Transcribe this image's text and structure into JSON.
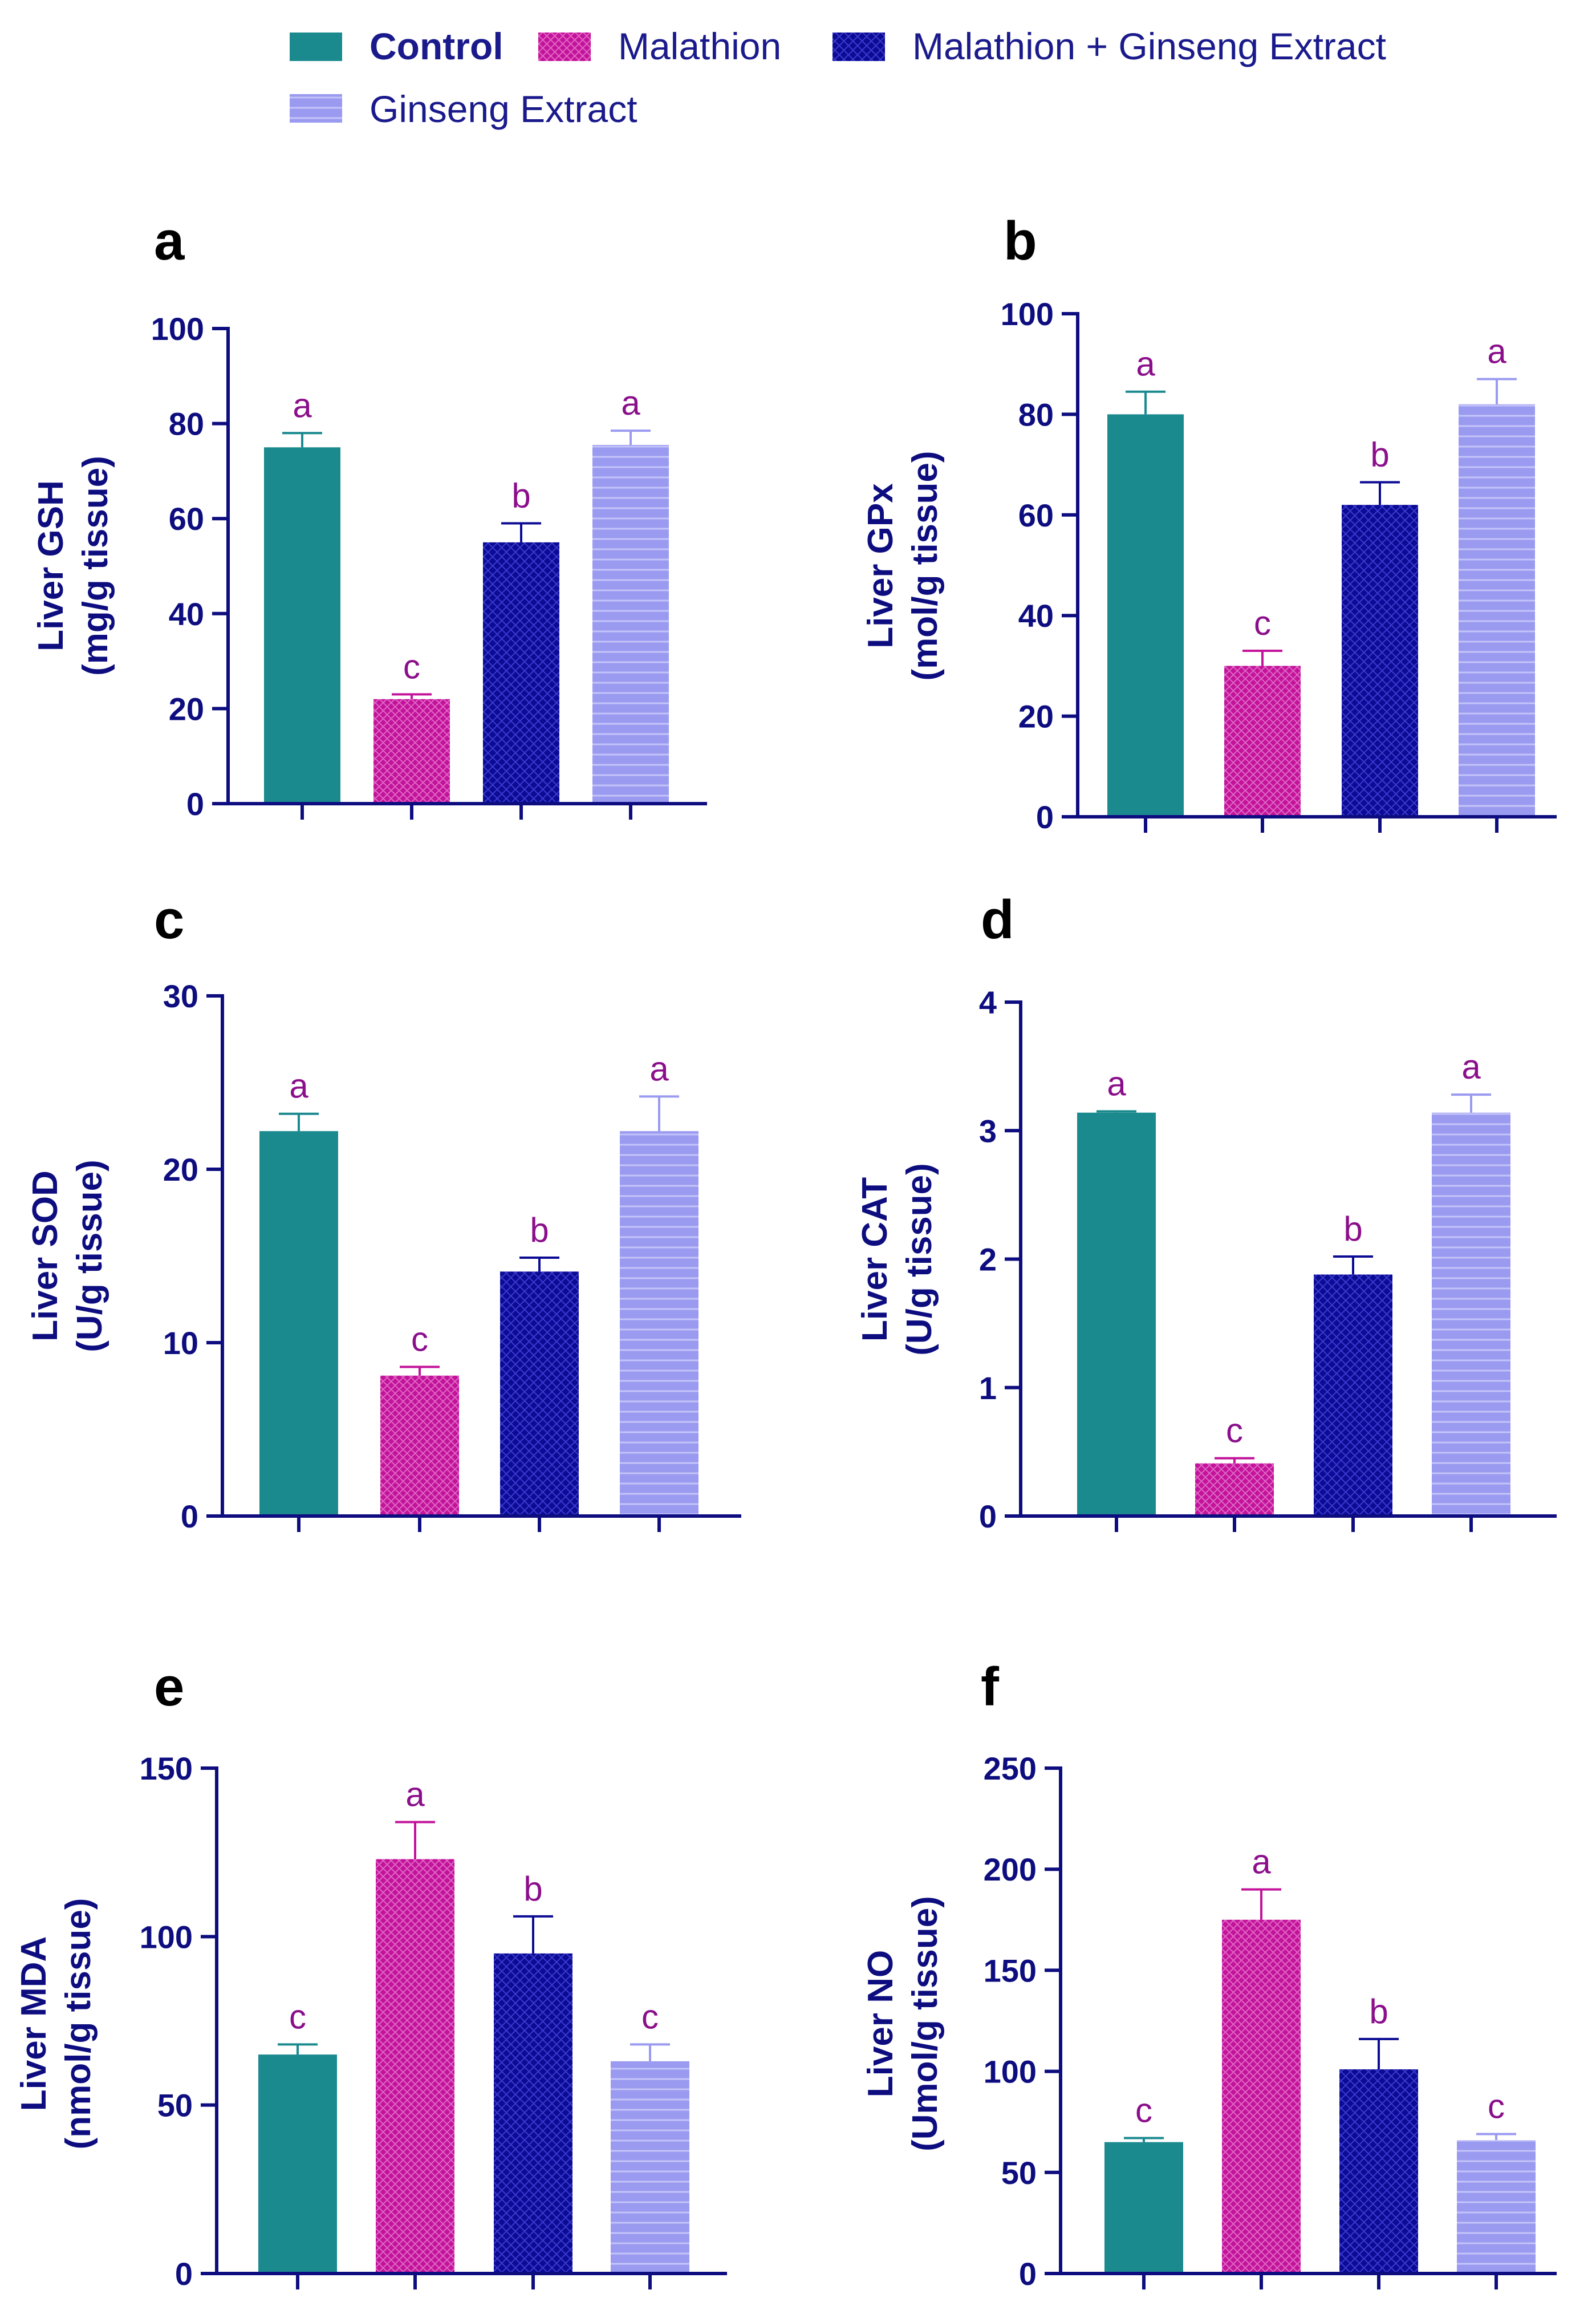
{
  "legend": {
    "items": [
      {
        "label": "Control",
        "color": "#1b8a8f",
        "bold": true
      },
      {
        "label": "Malathion",
        "color": "#c3139b"
      },
      {
        "label": "Malathion + Ginseng Extract",
        "color": "#0b0b94"
      },
      {
        "label": "Ginseng Extract",
        "color": "#9a9af0"
      }
    ]
  },
  "colors": {
    "axis": "#0d0d80",
    "significance_text": "#8b0f8b",
    "pattern_malathion": "#e066c4",
    "pattern_mge": "#3a3ad0",
    "pattern_ginseng": "#c4c4fa"
  },
  "chart_data": [
    {
      "panel": "a",
      "type": "bar",
      "ylabel_line1": "Liver GSH",
      "ylabel_line2": "(mg/g tissue)",
      "ylim": [
        0,
        100
      ],
      "yticks": [
        "0",
        "20",
        "40",
        "60",
        "80",
        "100"
      ],
      "categories": [
        "Control",
        "Malathion",
        "Malathion + Ginseng Extract",
        "Ginseng Extract"
      ],
      "values": [
        75,
        22,
        55,
        75.5
      ],
      "errors": [
        3,
        1,
        4,
        3
      ],
      "significance": [
        "a",
        "c",
        "b",
        "a"
      ]
    },
    {
      "panel": "b",
      "type": "bar",
      "ylabel_line1": "Liver GPx",
      "ylabel_line2": "(mol/g tissue)",
      "ylim": [
        0,
        100
      ],
      "yticks": [
        "0",
        "20",
        "40",
        "60",
        "80",
        "100"
      ],
      "categories": [
        "Control",
        "Malathion",
        "Malathion + Ginseng Extract",
        "Ginseng Extract"
      ],
      "values": [
        80,
        30,
        62,
        82
      ],
      "errors": [
        4.5,
        3,
        4.5,
        5
      ],
      "significance": [
        "a",
        "c",
        "b",
        "a"
      ]
    },
    {
      "panel": "c",
      "type": "bar",
      "ylabel_line1": "Liver SOD",
      "ylabel_line2": "(U/g tissue)",
      "ylim": [
        0,
        30
      ],
      "yticks": [
        "0",
        "10",
        "20",
        "30"
      ],
      "categories": [
        "Control",
        "Malathion",
        "Malathion + Ginseng Extract",
        "Ginseng Extract"
      ],
      "values": [
        22.2,
        8.1,
        14.1,
        22.2
      ],
      "errors": [
        1,
        0.5,
        0.8,
        2
      ],
      "significance": [
        "a",
        "c",
        "b",
        "a"
      ]
    },
    {
      "panel": "d",
      "type": "bar",
      "ylabel_line1": "Liver CAT",
      "ylabel_line2": "(U/g tissue)",
      "ylim": [
        0,
        4
      ],
      "yticks": [
        "0",
        "1",
        "2",
        "3",
        "4"
      ],
      "categories": [
        "Control",
        "Malathion",
        "Malathion + Ginseng Extract",
        "Ginseng Extract"
      ],
      "values": [
        3.14,
        0.41,
        1.88,
        3.14
      ],
      "errors": [
        0.01,
        0.04,
        0.14,
        0.14
      ],
      "significance": [
        "a",
        "c",
        "b",
        "a"
      ]
    },
    {
      "panel": "e",
      "type": "bar",
      "ylabel_line1": "Liver MDA",
      "ylabel_line2": "(nmol/g tissue)",
      "ylim": [
        0,
        150
      ],
      "yticks": [
        "0",
        "50",
        "100",
        "150"
      ],
      "categories": [
        "Control",
        "Malathion",
        "Malathion + Ginseng Extract",
        "Ginseng Extract"
      ],
      "values": [
        65,
        123,
        95,
        63
      ],
      "errors": [
        3,
        11,
        11,
        5
      ],
      "significance": [
        "c",
        "a",
        "b",
        "c"
      ]
    },
    {
      "panel": "f",
      "type": "bar",
      "ylabel_line1": "Liver NO",
      "ylabel_line2": "(Umol/g tissue)",
      "ylim": [
        0,
        250
      ],
      "yticks": [
        "0",
        "50",
        "100",
        "150",
        "200",
        "250"
      ],
      "categories": [
        "Control",
        "Malathion",
        "Malathion + Ginseng Extract",
        "Ginseng Extract"
      ],
      "values": [
        65,
        175,
        101,
        66
      ],
      "errors": [
        2,
        15,
        15,
        3
      ],
      "significance": [
        "c",
        "a",
        "b",
        "c"
      ]
    }
  ]
}
